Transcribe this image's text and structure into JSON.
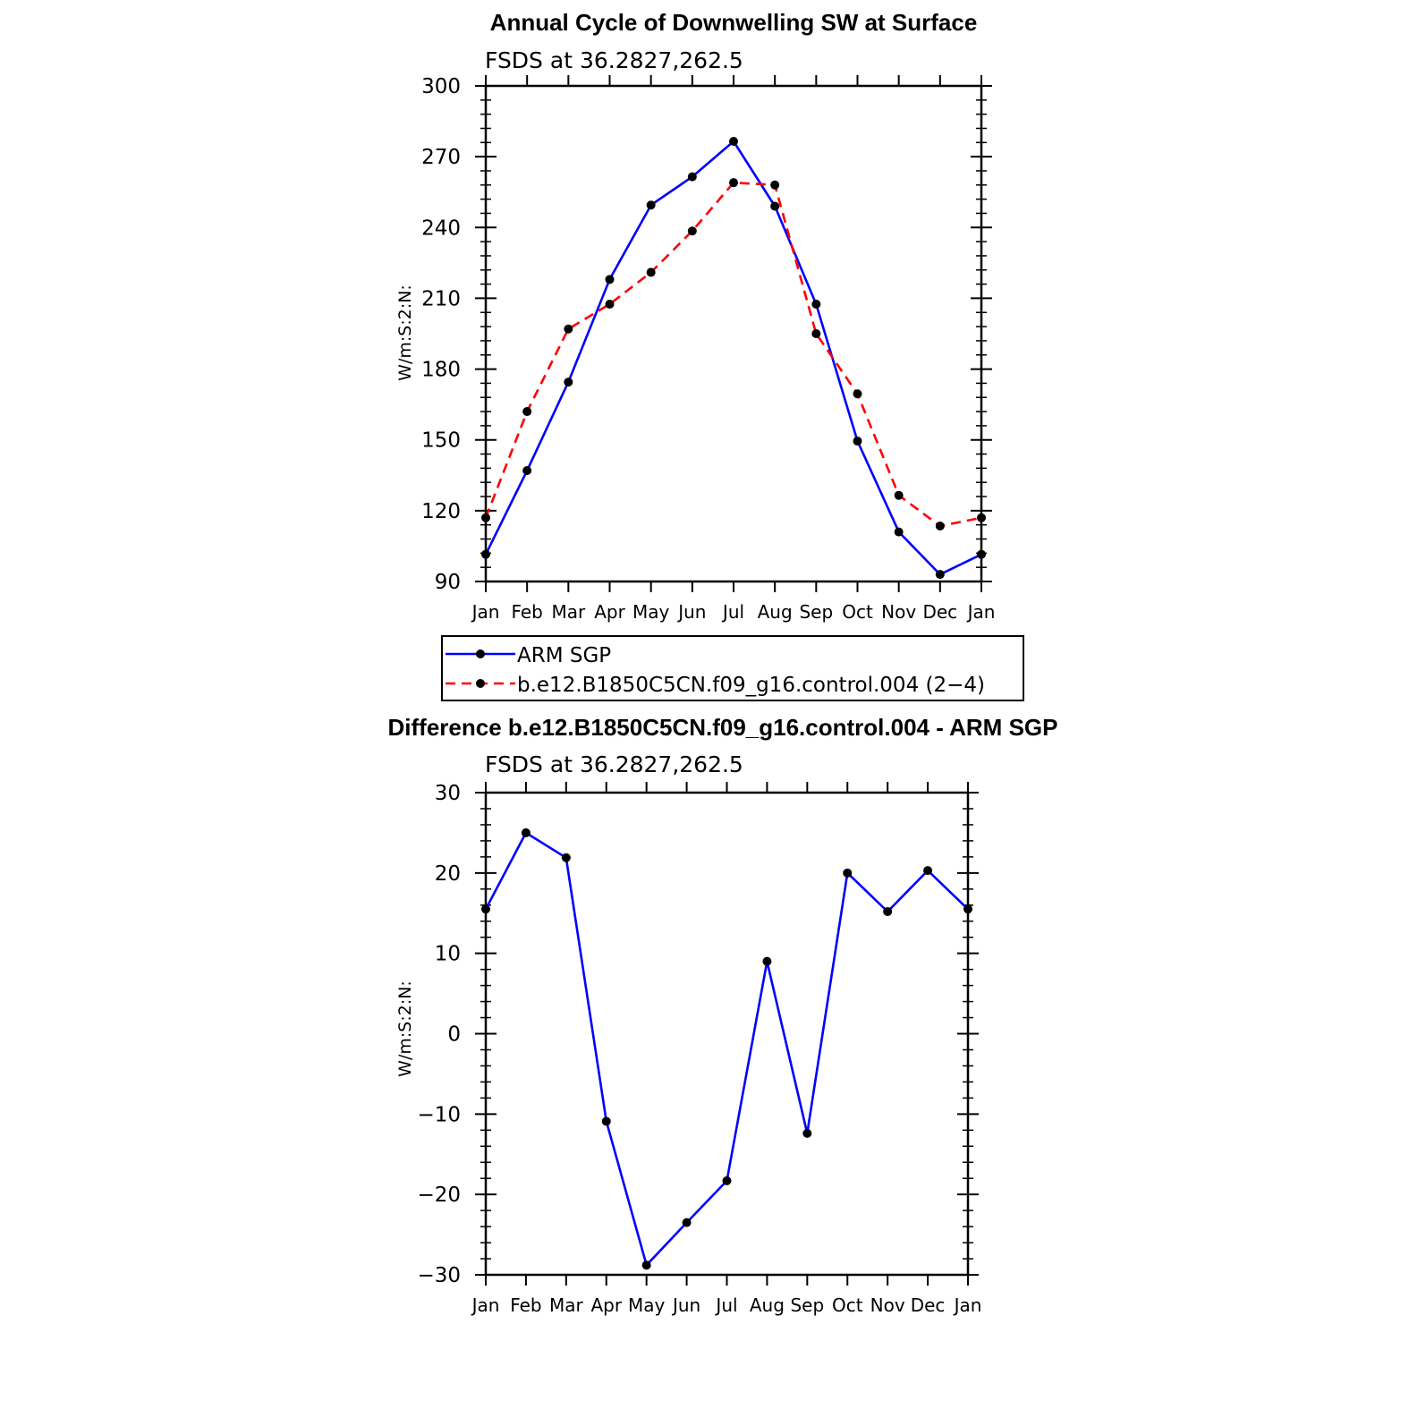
{
  "chart_data": [
    {
      "type": "line",
      "title": "Annual Cycle of Downwelling SW at Surface",
      "subtitle": "FSDS at 36.2827,262.5",
      "xlabel": "",
      "ylabel": "W/m:S:2:N:",
      "categories": [
        "Jan",
        "Feb",
        "Mar",
        "Apr",
        "May",
        "Jun",
        "Jul",
        "Aug",
        "Sep",
        "Oct",
        "Nov",
        "Dec",
        "Jan"
      ],
      "ylim": [
        90,
        300
      ],
      "yticks": [
        "90",
        "120",
        "150",
        "180",
        "210",
        "240",
        "270",
        "300"
      ],
      "series": [
        {
          "name": "ARM SGP",
          "color": "#0000ff",
          "dash": "solid",
          "values": [
            101.5,
            137,
            174.5,
            218,
            249.5,
            261.5,
            276.5,
            249,
            207.5,
            149.5,
            111,
            93,
            101.5
          ]
        },
        {
          "name": "b.e12.B1850C5CN.f09_g16.control.004 (2−4)",
          "color": "#ff0000",
          "dash": "dashed",
          "values": [
            117,
            162,
            197,
            207.5,
            221,
            238.5,
            259,
            258,
            195,
            169.5,
            126.5,
            113.5,
            117
          ]
        }
      ],
      "legend": "below"
    },
    {
      "type": "line",
      "title": "Difference b.e12.B1850C5CN.f09_g16.control.004 - ARM SGP",
      "subtitle": "FSDS at 36.2827,262.5",
      "xlabel": "",
      "ylabel": "W/m:S:2:N:",
      "categories": [
        "Jan",
        "Feb",
        "Mar",
        "Apr",
        "May",
        "Jun",
        "Jul",
        "Aug",
        "Sep",
        "Oct",
        "Nov",
        "Dec",
        "Jan"
      ],
      "ylim": [
        -30,
        30
      ],
      "yticks": [
        "−30",
        "−20",
        "−10",
        "0",
        "10",
        "20",
        "30"
      ],
      "series": [
        {
          "color": "#0000ff",
          "dash": "solid",
          "values": [
            15.5,
            25,
            21.9,
            -10.9,
            -28.8,
            -23.5,
            -18.3,
            9,
            -12.4,
            20,
            15.2,
            20.3,
            15.5
          ]
        }
      ]
    }
  ]
}
